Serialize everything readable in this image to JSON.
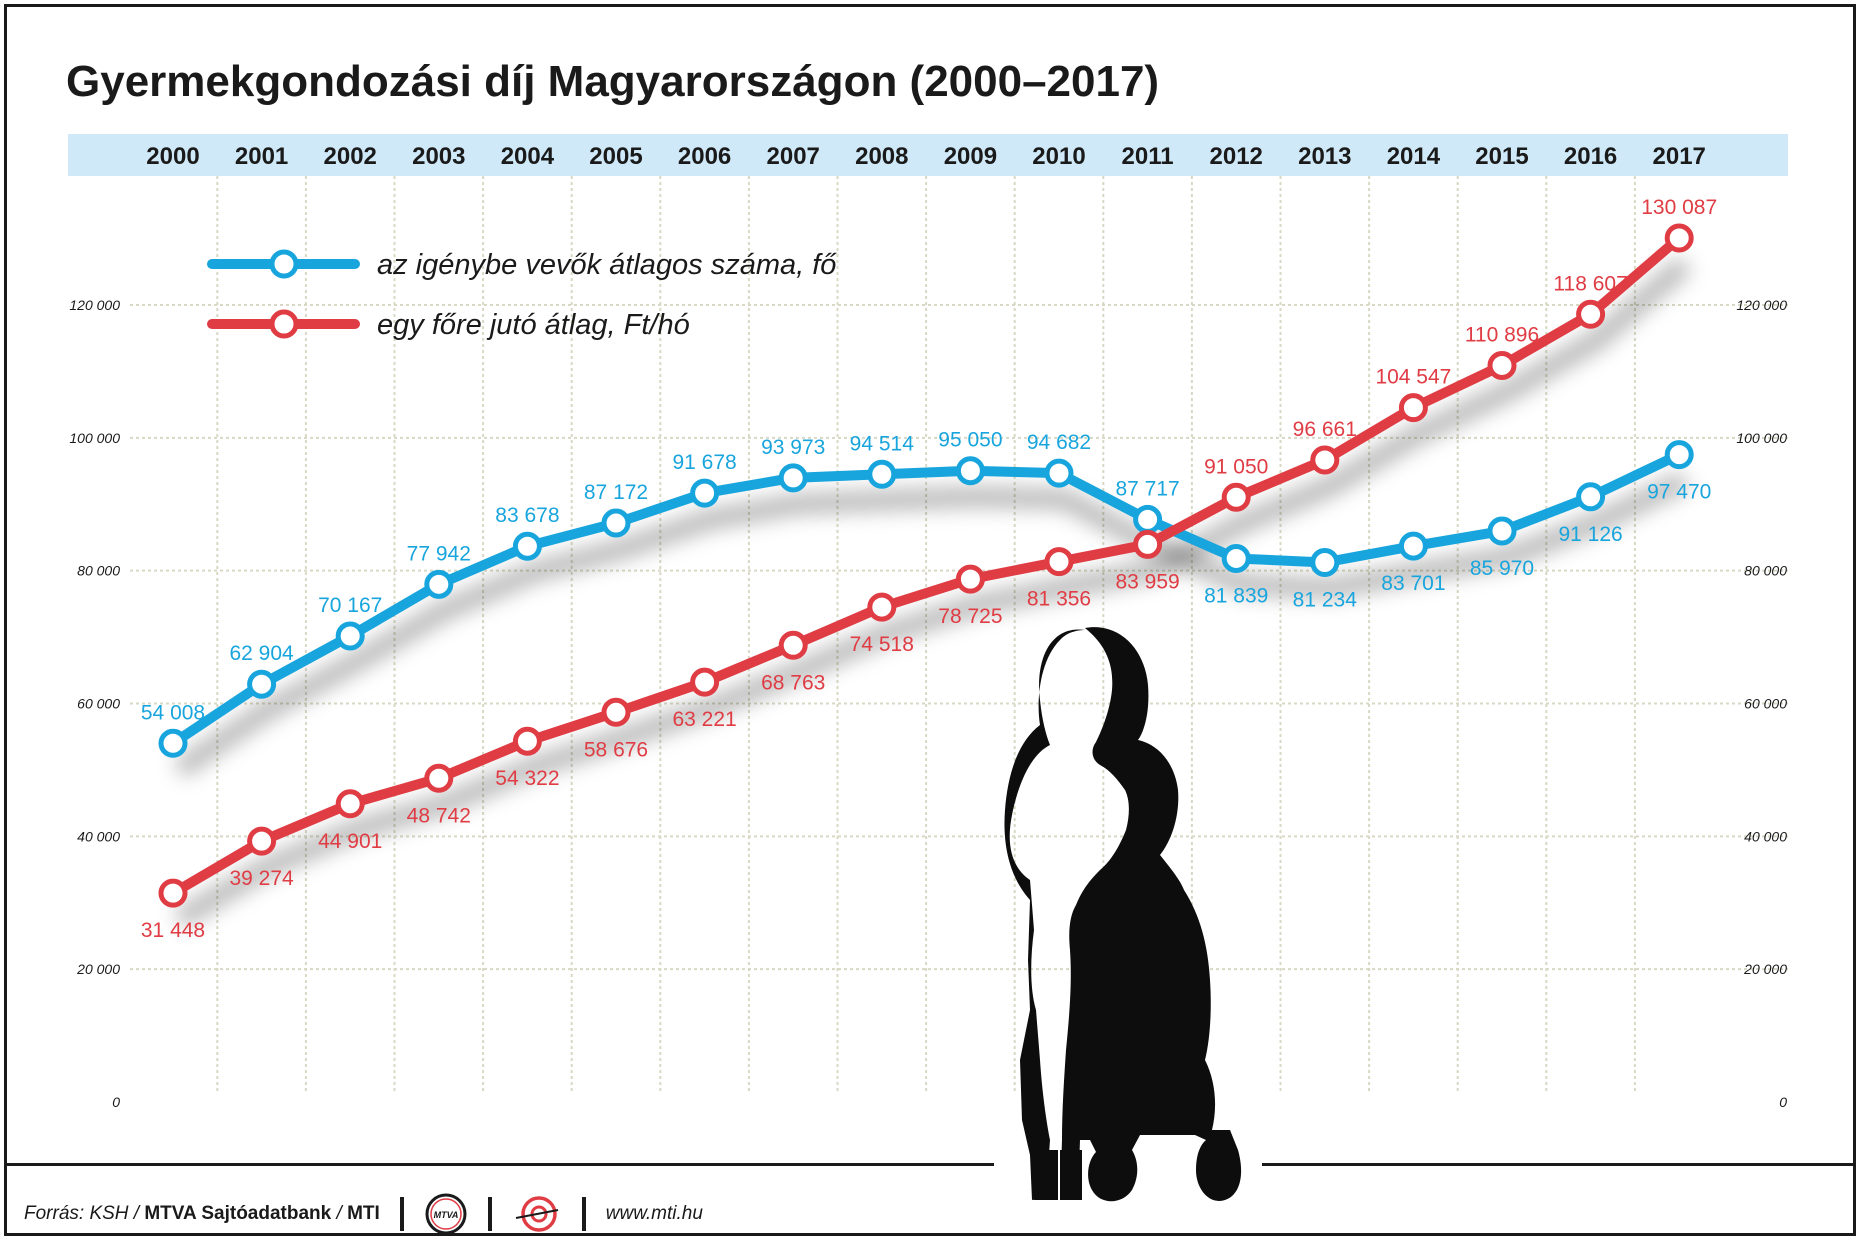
{
  "chart_data": {
    "type": "line",
    "title": "Gyermekgondozási díj Magyarországon (2000–2017)",
    "categories": [
      "2000",
      "2001",
      "2002",
      "2003",
      "2004",
      "2005",
      "2006",
      "2007",
      "2008",
      "2009",
      "2010",
      "2011",
      "2012",
      "2013",
      "2014",
      "2015",
      "2016",
      "2017"
    ],
    "series": [
      {
        "name": "az igénybe vevők átlagos száma, fő",
        "color": "#18a5dd",
        "values": [
          54008,
          62904,
          70167,
          77942,
          83678,
          87172,
          91678,
          93973,
          94514,
          95050,
          94682,
          87717,
          81839,
          81234,
          83701,
          85970,
          91126,
          97470
        ],
        "labels": [
          "54 008",
          "62 904",
          "70 167",
          "77 942",
          "83 678",
          "87 172",
          "91 678",
          "93 973",
          "94 514",
          "95 050",
          "94 682",
          "87 717",
          "81 839",
          "81 234",
          "83 701",
          "85 970",
          "91 126",
          "97 470"
        ]
      },
      {
        "name": "egy főre jutó átlag, Ft/hó",
        "color": "#e03c44",
        "values": [
          31448,
          39274,
          44901,
          48742,
          54322,
          58676,
          63221,
          68763,
          74518,
          78725,
          81356,
          83959,
          91050,
          96661,
          104547,
          110896,
          118607,
          130087
        ],
        "labels": [
          "31 448",
          "39 274",
          "44 901",
          "48 742",
          "54 322",
          "58 676",
          "63 221",
          "68 763",
          "74 518",
          "78 725",
          "81 356",
          "83 959",
          "91 050",
          "96 661",
          "104 547",
          "110 896",
          "118 607",
          "130 087"
        ]
      }
    ],
    "yticks": [
      0,
      20000,
      40000,
      60000,
      80000,
      100000,
      120000
    ],
    "ytick_labels": [
      "0",
      "20 000",
      "40 000",
      "60 000",
      "80 000",
      "100 000",
      "120 000"
    ],
    "ylim": [
      0,
      120000
    ],
    "legend_position": "top-left",
    "grid": true
  },
  "footer": {
    "source_prefix": "Forrás: KSH / ",
    "source_bold1": "MTVA Sajtóadatbank",
    "source_mid": " / ",
    "source_bold2": "MTI",
    "mtva_logo_text": "MTVA",
    "url": "www.mti.hu"
  },
  "colors": {
    "header_band": "#cfe9f8",
    "grid": "#d8d8c4",
    "silhouette": "#0d0d0d"
  }
}
